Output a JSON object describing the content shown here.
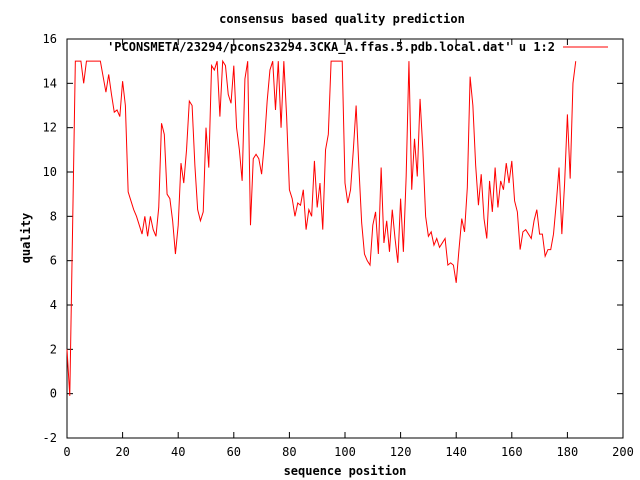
{
  "chart_data": {
    "type": "line",
    "title": "consensus based quality prediction",
    "xlabel": "sequence position",
    "ylabel": "quality",
    "xlim": [
      0,
      200
    ],
    "ylim": [
      -2,
      16
    ],
    "xticks": [
      0,
      20,
      40,
      60,
      80,
      100,
      120,
      140,
      160,
      180,
      200
    ],
    "yticks": [
      -2,
      0,
      2,
      4,
      6,
      8,
      10,
      12,
      14,
      16
    ],
    "grid": false,
    "legend_position": "top-right",
    "series": [
      {
        "name": "'PCONSMETA/23294/pcons23294.3CKA_A.ffas.5.pdb.local.dat' u 1:2",
        "color": "#ff0000",
        "x": [
          0,
          1,
          2,
          3,
          4,
          5,
          6,
          7,
          8,
          9,
          10,
          11,
          12,
          13,
          14,
          15,
          16,
          17,
          18,
          19,
          20,
          21,
          22,
          23,
          24,
          25,
          26,
          27,
          28,
          29,
          30,
          31,
          32,
          33,
          34,
          35,
          36,
          37,
          38,
          39,
          40,
          41,
          42,
          43,
          44,
          45,
          46,
          47,
          48,
          49,
          50,
          51,
          52,
          53,
          54,
          55,
          56,
          57,
          58,
          59,
          60,
          61,
          62,
          63,
          64,
          65,
          66,
          67,
          68,
          69,
          70,
          71,
          72,
          73,
          74,
          75,
          76,
          77,
          78,
          79,
          80,
          81,
          82,
          83,
          84,
          85,
          86,
          87,
          88,
          89,
          90,
          91,
          92,
          93,
          94,
          95,
          96,
          97,
          98,
          99,
          100,
          101,
          102,
          103,
          104,
          105,
          106,
          107,
          108,
          109,
          110,
          111,
          112,
          113,
          114,
          115,
          116,
          117,
          118,
          119,
          120,
          121,
          122,
          123,
          124,
          125,
          126,
          127,
          128,
          129,
          130,
          131,
          132,
          133,
          134,
          135,
          136,
          137,
          138,
          139,
          140,
          141,
          142,
          143,
          144,
          145,
          146,
          147,
          148,
          149,
          150,
          151,
          152,
          153,
          154,
          155,
          156,
          157,
          158,
          159,
          160,
          161,
          162,
          163,
          164,
          165,
          166,
          167,
          168,
          169,
          170,
          171,
          172,
          173,
          174,
          175,
          176,
          177,
          178,
          179,
          180,
          181,
          182,
          183
        ],
        "y": [
          2.0,
          -0.1,
          7.4,
          15.0,
          15.0,
          15.0,
          14.0,
          15.0,
          15.0,
          15.0,
          15.0,
          15.0,
          15.0,
          14.3,
          13.6,
          14.4,
          13.5,
          12.7,
          12.8,
          12.5,
          14.1,
          13.0,
          9.1,
          8.7,
          8.3,
          8.0,
          7.6,
          7.2,
          8.0,
          7.1,
          8.0,
          7.4,
          7.1,
          8.4,
          12.2,
          11.7,
          9.0,
          8.8,
          7.8,
          6.3,
          7.6,
          10.4,
          9.5,
          11.0,
          13.2,
          13.0,
          10.3,
          8.3,
          7.8,
          8.2,
          12.0,
          10.2,
          14.8,
          14.6,
          15.0,
          12.5,
          15.0,
          14.8,
          13.5,
          13.1,
          14.8,
          12.0,
          11.0,
          9.6,
          14.2,
          15.0,
          7.6,
          10.6,
          10.8,
          10.6,
          9.9,
          11.3,
          13.2,
          14.6,
          15.0,
          12.8,
          15.0,
          12.0,
          15.0,
          12.5,
          9.2,
          8.8,
          8.0,
          8.6,
          8.5,
          9.2,
          7.4,
          8.3,
          8.0,
          10.5,
          8.4,
          9.5,
          7.4,
          11.0,
          11.7,
          15.0,
          15.0,
          15.0,
          15.0,
          15.0,
          9.5,
          8.6,
          9.2,
          11.0,
          13.0,
          10.2,
          7.7,
          6.3,
          6.0,
          5.8,
          7.6,
          8.2,
          6.3,
          10.2,
          6.8,
          7.8,
          6.4,
          8.3,
          7.0,
          5.9,
          8.8,
          6.4,
          9.8,
          15.0,
          9.2,
          11.5,
          9.8,
          13.3,
          11.0,
          8.0,
          7.1,
          7.3,
          6.7,
          7.0,
          6.6,
          6.8,
          7.0,
          5.8,
          5.9,
          5.8,
          5.0,
          6.5,
          7.9,
          7.3,
          9.3,
          14.3,
          13.0,
          10.3,
          8.5,
          9.9,
          7.9,
          7.0,
          9.6,
          8.2,
          10.2,
          8.4,
          9.6,
          9.2,
          10.4,
          9.5,
          10.5,
          8.7,
          8.2,
          6.5,
          7.3,
          7.4,
          7.2,
          7.0,
          7.8,
          8.3,
          7.2,
          7.2,
          6.2,
          6.5,
          6.5,
          7.2,
          8.6,
          10.2,
          7.2,
          9.5,
          12.6,
          9.7,
          14.0,
          15.0
        ]
      }
    ]
  }
}
